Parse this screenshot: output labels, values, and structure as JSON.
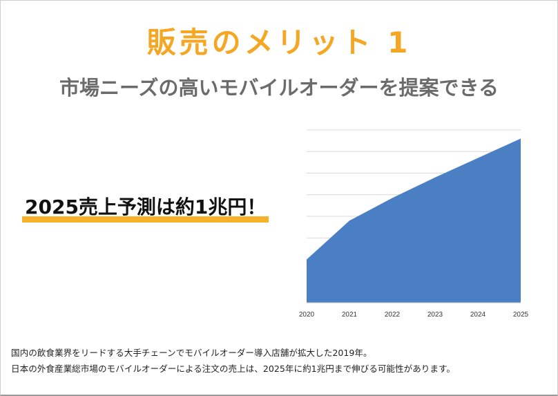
{
  "slide": {
    "title": "販売のメリット 1",
    "subtitle": "市場ニーズの高いモバイルオーダーを提案できる",
    "callout": "2025売上予測は約1兆円！",
    "notes": [
      "国内の飲食業界をリードする大手チェーンでモバイルオーダー導入店舗が拡大した2019年。",
      "日本の外食産業総市場のモバイルオーダーによる注文の売上は、2025年に約1兆円まで伸びる可能性があります。"
    ]
  },
  "colors": {
    "accent_orange": "#f5a623",
    "highlight_yellow": "#f7b12b",
    "area_blue": "#4a7fc4",
    "grid_gray": "#d9d9d9"
  },
  "chart_data": {
    "type": "area",
    "x": [
      "2020",
      "2021",
      "2022",
      "2023",
      "2024",
      "2025"
    ],
    "series": [
      {
        "values": [
          2.0,
          3.8,
          4.85,
          5.8,
          6.7,
          7.6
        ]
      }
    ],
    "xlabel": "",
    "ylabel": "",
    "ylim": [
      0,
      8
    ],
    "grid": true,
    "y_tick_labels_shown": false,
    "legend": "none"
  }
}
